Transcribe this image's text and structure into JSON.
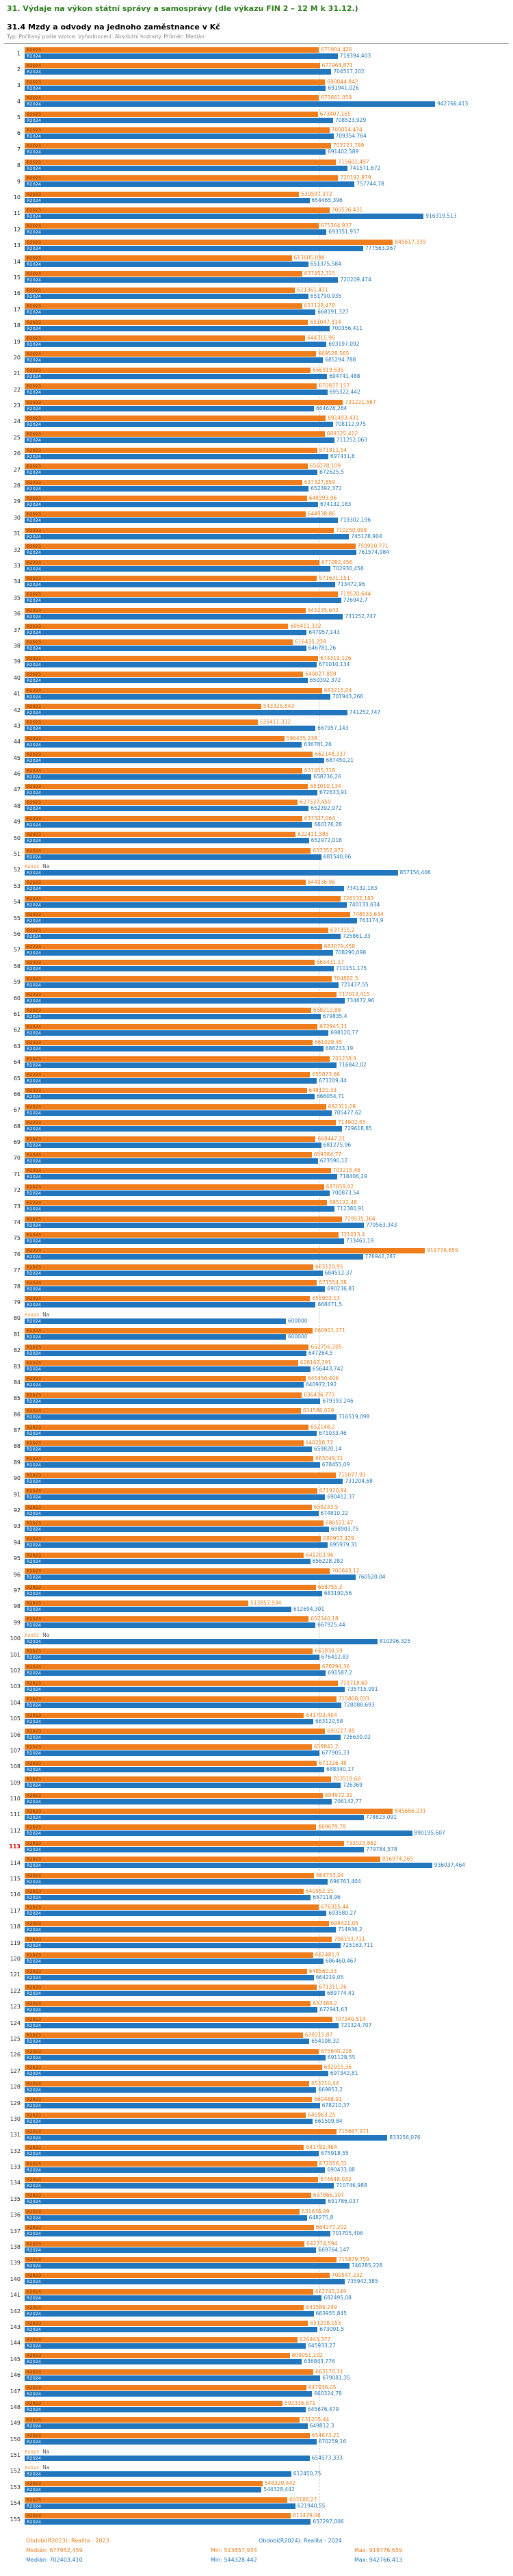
{
  "header": {
    "title": "31. Výdaje na výkon státní správy a samosprávy (dle výkazu FIN 2 – 12 M k 31.12.)",
    "subtitle": "31.4 Mzdy a odvody na jednoho zaměstnance v Kč",
    "note": "Typ: Počítaný podle vzorce. Vyhodnocení: Absolutní hodnoty. Průměr: Medián"
  },
  "legend": {
    "median_label": "Medián:",
    "min_label": "Min:",
    "max_label": "Max:"
  },
  "chart_data": {
    "type": "bar",
    "orientation": "horizontal",
    "value_unit": "Kč",
    "axis_max": 942766.413,
    "na_text": "Na",
    "highlighted_row": 113,
    "series": [
      {
        "key": "R2023",
        "label": "R2023",
        "legend": "Období(R2023): Realita - 2023",
        "color": "#ef7d1c",
        "label_color": "#7c3f00",
        "median": "677952,459",
        "min": "513857,934",
        "max": "919776,659"
      },
      {
        "key": "R2024",
        "label": "R2024",
        "legend": "Období(R2024): Realita - 2024",
        "color": "#2176bd",
        "label_color": "#ffffff",
        "median": "702403,410",
        "min": "544328,442",
        "max": "942766,413"
      }
    ],
    "rows": [
      {
        "n": 1,
        "R2023": "675904,426",
        "R2024": "719394,403"
      },
      {
        "n": 2,
        "R2023": "677964,871",
        "R2024": "704517,202"
      },
      {
        "n": 3,
        "R2023": "690044,842",
        "R2024": "691941,026"
      },
      {
        "n": 4,
        "R2023": "675661,059",
        "R2024": "942766,413"
      },
      {
        "n": 5,
        "R2023": "673407,165",
        "R2024": "708523,929"
      },
      {
        "n": 6,
        "R2023": "700014,434",
        "R2024": "709354,764"
      },
      {
        "n": 7,
        "R2023": "703723,789",
        "R2024": "691402,589"
      },
      {
        "n": 8,
        "R2023": "715601,497",
        "R2024": "741571,672"
      },
      {
        "n": 9,
        "R2023": "720192,879",
        "R2024": "757744,78"
      },
      {
        "n": 10,
        "R2023": "630597,372",
        "R2024": "654465,396"
      },
      {
        "n": 11,
        "R2023": "700536,431",
        "R2024": "916319,513"
      },
      {
        "n": 12,
        "R2023": "675364,937",
        "R2024": "693351,957"
      },
      {
        "n": 13,
        "R2023": "845617,339",
        "R2024": "777563,967"
      },
      {
        "n": 14,
        "R2023": "613605,096",
        "R2024": "651375,584"
      },
      {
        "n": 15,
        "R2023": "637452,315",
        "R2024": "720209,474"
      },
      {
        "n": 16,
        "R2023": "621361,431",
        "R2024": "651790,935"
      },
      {
        "n": 17,
        "R2023": "637128,478",
        "R2024": "668191,327"
      },
      {
        "n": 18,
        "R2023": "651047,314",
        "R2024": "700356,411"
      },
      {
        "n": 19,
        "R2023": "644315,96",
        "R2024": "693197,092"
      },
      {
        "n": 20,
        "R2023": "669528,565",
        "R2024": "685294,788"
      },
      {
        "n": 21,
        "R2023": "656919,635",
        "R2024": "694741,488"
      },
      {
        "n": 22,
        "R2023": "670927,157",
        "R2024": "695322,442"
      },
      {
        "n": 23,
        "R2023": "731221,567",
        "R2024": "664626,264"
      },
      {
        "n": 24,
        "R2023": "691493,431",
        "R2024": "708112,975"
      },
      {
        "n": 25,
        "R2023": "689325,412",
        "R2024": "711252,063"
      },
      {
        "n": 26,
        "R2023": "671811,54",
        "R2024": "697431,8"
      },
      {
        "n": 27,
        "R2023": "650178,109",
        "R2024": "672625,5"
      },
      {
        "n": 28,
        "R2023": "637327,859",
        "R2024": "652392,372"
      },
      {
        "n": 29,
        "R2023": "648393,96",
        "R2024": "674132,183"
      },
      {
        "n": 30,
        "R2023": "644938,86",
        "R2024": "719302,196"
      },
      {
        "n": 31,
        "R2023": "710250,098",
        "R2024": "745178,904"
      },
      {
        "n": 32,
        "R2023": "759910,771",
        "R2024": "761574,984"
      },
      {
        "n": 33,
        "R2023": "677082,456",
        "R2024": "702930,456"
      },
      {
        "n": 34,
        "R2023": "671631,151",
        "R2024": "713472,96"
      },
      {
        "n": 35,
        "R2023": "719520,644",
        "R2024": "726942,7"
      },
      {
        "n": 36,
        "R2023": "645235,643",
        "R2024": "731252,747"
      },
      {
        "n": 37,
        "R2023": "605411,332",
        "R2024": "647957,143"
      },
      {
        "n": 38,
        "R2023": "616435,238",
        "R2024": "646781,26"
      },
      {
        "n": 39,
        "R2023": "674319,126",
        "R2024": "671010,134"
      },
      {
        "n": 40,
        "R2023": "640027,859",
        "R2024": "650392,372"
      },
      {
        "n": 41,
        "R2023": "683215,04",
        "R2024": "701943,266"
      },
      {
        "n": 42,
        "R2023": "543325,843",
        "R2024": "741252,747"
      },
      {
        "n": 43,
        "R2023": "535411,332",
        "R2024": "667957,143"
      },
      {
        "n": 44,
        "R2023": "596435,238",
        "R2024": "636781,26"
      },
      {
        "n": 45,
        "R2023": "662148,337",
        "R2024": "687450,21"
      },
      {
        "n": 46,
        "R2023": "637455,718",
        "R2024": "658736,26"
      },
      {
        "n": 47,
        "R2023": "651010,134",
        "R2024": "672633,91"
      },
      {
        "n": 48,
        "R2023": "627537,459",
        "R2024": "652392,972"
      },
      {
        "n": 49,
        "R2023": "637327,064",
        "R2024": "660176,28"
      },
      {
        "n": 50,
        "R2023": "622411,385",
        "R2024": "652972,018"
      },
      {
        "n": 51,
        "R2023": "657352,972",
        "R2024": "681540,66"
      },
      {
        "n": 52,
        "R2023": "Na",
        "R2024": "857156,406"
      },
      {
        "n": 53,
        "R2023": "644936,96",
        "R2024": "734132,183"
      },
      {
        "n": 54,
        "R2023": "726132,183",
        "R2024": "740133,634"
      },
      {
        "n": 55,
        "R2023": "748533,634",
        "R2024": "763174,9"
      },
      {
        "n": 56,
        "R2023": "697315,2",
        "R2024": "725861,33"
      },
      {
        "n": 57,
        "R2023": "683079,458",
        "R2024": "708290,098"
      },
      {
        "n": 58,
        "R2023": "665431,17",
        "R2024": "710151,175"
      },
      {
        "n": 59,
        "R2023": "704882,3",
        "R2024": "721437,55"
      },
      {
        "n": 60,
        "R2023": "717013,415",
        "R2024": "734672,96"
      },
      {
        "n": 61,
        "R2023": "658212,88",
        "R2024": "679835,4"
      },
      {
        "n": 62,
        "R2023": "672945,11",
        "R2024": "698120,77"
      },
      {
        "n": 63,
        "R2023": "661029,45",
        "R2024": "686233,19"
      },
      {
        "n": 64,
        "R2023": "701238,9",
        "R2024": "716842,02"
      },
      {
        "n": 65,
        "R2023": "655873,66",
        "R2024": "671209,44"
      },
      {
        "n": 66,
        "R2023": "648120,33",
        "R2024": "666054,71"
      },
      {
        "n": 67,
        "R2023": "692311,08",
        "R2024": "705477,62"
      },
      {
        "n": 68,
        "R2023": "714902,55",
        "R2024": "729618,85"
      },
      {
        "n": 69,
        "R2023": "668447,21",
        "R2024": "681275,96"
      },
      {
        "n": 70,
        "R2023": "659384,77",
        "R2024": "673590,12"
      },
      {
        "n": 71,
        "R2023": "703215,46",
        "R2024": "718406,29"
      },
      {
        "n": 72,
        "R2023": "687659,02",
        "R2024": "700873,54"
      },
      {
        "n": 73,
        "R2023": "695122,48",
        "R2024": "712380,91"
      },
      {
        "n": 74,
        "R2023": "729535,364",
        "R2024": "779563,343"
      },
      {
        "n": 75,
        "R2023": "721013,4",
        "R2024": "733461,19"
      },
      {
        "n": 76,
        "R2023": "919776,659",
        "R2024": "776942,787"
      },
      {
        "n": 77,
        "R2023": "663120,95",
        "R2024": "684512,37"
      },
      {
        "n": 78,
        "R2023": "671554,28",
        "R2024": "690236,81"
      },
      {
        "n": 79,
        "R2023": "655902,13",
        "R2024": "668471,5"
      },
      {
        "n": 80,
        "R2023": "Na",
        "R2024": "600000"
      },
      {
        "n": 81,
        "R2023": "660911,271",
        "R2024": "600000"
      },
      {
        "n": 82,
        "R2023": "652756,205",
        "R2024": "647264,5"
      },
      {
        "n": 83,
        "R2023": "628162,791",
        "R2024": "656443,742"
      },
      {
        "n": 84,
        "R2023": "645450,406",
        "R2024": "640972,192"
      },
      {
        "n": 85,
        "R2023": "636436,775",
        "R2024": "679393,246"
      },
      {
        "n": 86,
        "R2023": "634586,019",
        "R2024": "716519,098"
      },
      {
        "n": 87,
        "R2023": "652148,2",
        "R2024": "671033,46"
      },
      {
        "n": 88,
        "R2023": "640218,77",
        "R2024": "659820,14"
      },
      {
        "n": 89,
        "R2023": "663049,31",
        "R2024": "678455,09"
      },
      {
        "n": 90,
        "R2023": "715077,93",
        "R2024": "731204,68"
      },
      {
        "n": 91,
        "R2023": "671920,84",
        "R2024": "690412,37"
      },
      {
        "n": 92,
        "R2023": "659233,5",
        "R2024": "674810,22"
      },
      {
        "n": 93,
        "R2023": "686521,47",
        "R2024": "698903,75"
      },
      {
        "n": 94,
        "R2023": "680952,429",
        "R2024": "695979,31"
      },
      {
        "n": 95,
        "R2023": "641203,96",
        "R2024": "656228,282"
      },
      {
        "n": 96,
        "R2023": "700843,12",
        "R2024": "760520,04"
      },
      {
        "n": 97,
        "R2023": "668755,3",
        "R2024": "683190,56"
      },
      {
        "n": 98,
        "R2023": "513857,934",
        "R2024": "612694,301"
      },
      {
        "n": 99,
        "R2023": "652340,18",
        "R2024": "667925,44"
      },
      {
        "n": 100,
        "R2023": "Na",
        "R2024": "810296,325"
      },
      {
        "n": 101,
        "R2023": "661830,59",
        "R2024": "676412,83"
      },
      {
        "n": 102,
        "R2023": "678294,36",
        "R2024": "691587,2"
      },
      {
        "n": 103,
        "R2023": "719718,69",
        "R2024": "735715,091"
      },
      {
        "n": 104,
        "R2023": "715808,033",
        "R2024": "728088,693"
      },
      {
        "n": 105,
        "R2023": "641703,404",
        "R2024": "663120,58"
      },
      {
        "n": 106,
        "R2023": "690217,85",
        "R2024": "726630,02"
      },
      {
        "n": 107,
        "R2023": "659841,2",
        "R2024": "677905,33"
      },
      {
        "n": 108,
        "R2023": "671226,48",
        "R2024": "688340,17"
      },
      {
        "n": 109,
        "R2023": "703519,66",
        "R2024": "726369"
      },
      {
        "n": 110,
        "R2023": "684972,31",
        "R2024": "706142,77"
      },
      {
        "n": 111,
        "R2023": "845686,231",
        "R2024": "778823,091"
      },
      {
        "n": 112,
        "R2023": "669679,78",
        "R2024": "890195,607"
      },
      {
        "n": 113,
        "R2023": "733023,862",
        "R2024": "779784,578"
      },
      {
        "n": 114,
        "R2023": "816974,265",
        "R2024": "936037,464"
      },
      {
        "n": 115,
        "R2023": "664753,04",
        "R2024": "696763,404"
      },
      {
        "n": 116,
        "R2023": "640952,31",
        "R2024": "657118,96"
      },
      {
        "n": 117,
        "R2023": "676315,44",
        "R2024": "693580,27"
      },
      {
        "n": 118,
        "R2023": "698421,05",
        "R2024": "714936,2"
      },
      {
        "n": 119,
        "R2023": "706153,711",
        "R2024": "725163,711"
      },
      {
        "n": 120,
        "R2023": "662481,9",
        "R2024": "686460,467"
      },
      {
        "n": 121,
        "R2023": "648560,33",
        "R2024": "664219,05"
      },
      {
        "n": 122,
        "R2023": "671311,26",
        "R2024": "689774,41"
      },
      {
        "n": 123,
        "R2023": "657488,2",
        "R2024": "672941,63"
      },
      {
        "n": 124,
        "R2023": "707340,514",
        "R2024": "721324,707"
      },
      {
        "n": 125,
        "R2023": "639215,87",
        "R2024": "654108,32"
      },
      {
        "n": 126,
        "R2023": "675640,218",
        "R2024": "691128,55"
      },
      {
        "n": 127,
        "R2023": "682915,36",
        "R2024": "697342,81"
      },
      {
        "n": 128,
        "R2023": "653710,44",
        "R2024": "669853,2"
      },
      {
        "n": 129,
        "R2023": "660488,91",
        "R2024": "678210,37"
      },
      {
        "n": 130,
        "R2023": "645963,25",
        "R2024": "661509,84"
      },
      {
        "n": 131,
        "R2023": "715667,971",
        "R2024": "833256,076"
      },
      {
        "n": 132,
        "R2023": "641782,464",
        "R2024": "675918,55"
      },
      {
        "n": 133,
        "R2023": "672056,31",
        "R2024": "690433,08"
      },
      {
        "n": 134,
        "R2023": "674648,032",
        "R2024": "710746,988"
      },
      {
        "n": 135,
        "R2023": "657866,107",
        "R2024": "691786,037"
      },
      {
        "n": 136,
        "R2023": "631636,49",
        "R2024": "648275,8"
      },
      {
        "n": 137,
        "R2023": "664277,202",
        "R2024": "701705,406"
      },
      {
        "n": 138,
        "R2023": "642774,594",
        "R2024": "669764,147"
      },
      {
        "n": 139,
        "R2023": "715879,759",
        "R2024": "746285,228"
      },
      {
        "n": 140,
        "R2023": "700547,232",
        "R2024": "735942,385"
      },
      {
        "n": 141,
        "R2023": "662745,249",
        "R2024": "682495,08"
      },
      {
        "n": 142,
        "R2023": "641586,249",
        "R2024": "663955,845"
      },
      {
        "n": 143,
        "R2023": "651208,155",
        "R2024": "673091,5"
      },
      {
        "n": 144,
        "R2023": "626943,377",
        "R2024": "645933,27"
      },
      {
        "n": 145,
        "R2023": "609051,102",
        "R2024": "636843,776"
      },
      {
        "n": 146,
        "R2023": "663170,31",
        "R2024": "679081,35"
      },
      {
        "n": 147,
        "R2023": "647036,05",
        "R2024": "660324,78"
      },
      {
        "n": 148,
        "R2023": "592336,671",
        "R2024": "645676,479"
      },
      {
        "n": 149,
        "R2023": "631205,44",
        "R2024": "649812,3"
      },
      {
        "n": 150,
        "R2023": "654873,21",
        "R2024": "670259,16"
      },
      {
        "n": 151,
        "R2023": "Na",
        "R2024": "654573,333"
      },
      {
        "n": 152,
        "R2023": "Na",
        "R2024": "612450,75"
      },
      {
        "n": 153,
        "R2023": "546329,442",
        "R2024": "544328,442"
      },
      {
        "n": 154,
        "R2023": "603188,27",
        "R2024": "621940,55"
      },
      {
        "n": 155,
        "R2023": "611479,06",
        "R2024": "657297,006"
      }
    ]
  }
}
